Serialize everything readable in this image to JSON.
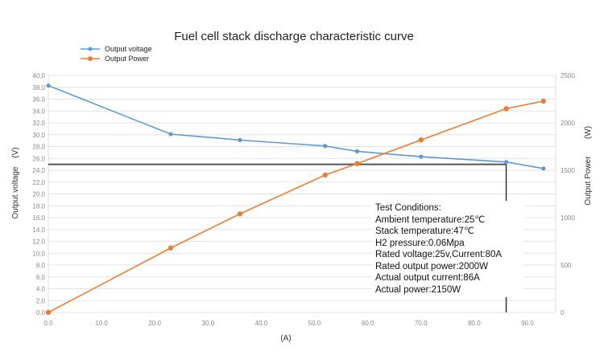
{
  "chart_data": {
    "type": "line",
    "title": "Fuel cell stack discharge characteristic curve",
    "xlabel": "(A)",
    "ylabel": "Output voltage",
    "ylabel_unit": "(V)",
    "y2label": "Output Power",
    "y2label_unit": "(W)",
    "xlim": [
      0,
      90
    ],
    "ylim": [
      0,
      40
    ],
    "y2lim": [
      0,
      2500
    ],
    "x_ticks": [
      "0.0",
      "10.0",
      "20.0",
      "30.0",
      "40.0",
      "50.0",
      "60.0",
      "70.0",
      "80.0",
      "90.0"
    ],
    "y_ticks": [
      "0.0",
      "2.0",
      "4.0",
      "6.0",
      "8.0",
      "10.0",
      "12.0",
      "14.0",
      "16.0",
      "18.0",
      "20.0",
      "22.0",
      "24.0",
      "26.0",
      "28.0",
      "30.0",
      "32.0",
      "34.0",
      "36.0",
      "38.0",
      "40.0"
    ],
    "y2_ticks": [
      "0",
      "500",
      "1000",
      "1500",
      "2000",
      "2500"
    ],
    "grid": true,
    "legend_position": "top-left",
    "series": [
      {
        "name": "Output voltage",
        "axis": "left",
        "color": "#5B9BD5",
        "x": [
          0,
          23,
          36,
          52,
          58,
          70,
          86,
          93
        ],
        "values": [
          38.3,
          30.1,
          29.1,
          28.1,
          27.2,
          26.3,
          25.4,
          24.3
        ]
      },
      {
        "name": "Output Power",
        "axis": "right",
        "color": "#ED7D31",
        "x": [
          0,
          23,
          36,
          52,
          58,
          70,
          86,
          93
        ],
        "values": [
          0,
          680,
          1040,
          1450,
          1570,
          1820,
          2150,
          2230
        ]
      }
    ],
    "reference_lines": {
      "voltage": 25,
      "current": 86
    },
    "annotation": [
      "Test Conditions:",
      "Ambient temperature:25℃",
      "Stack temperature:47℃",
      "H2 pressure:0.06Mpa",
      "Rated voltage:25v,Current:80A",
      "Rated output power:2000W",
      "Actual output current:86A",
      "Actual power:2150W"
    ]
  }
}
